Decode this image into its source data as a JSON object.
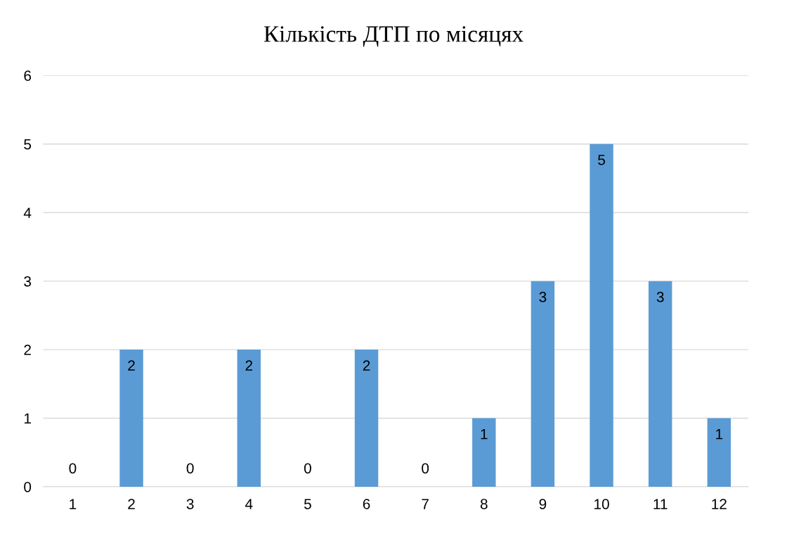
{
  "chart_data": {
    "type": "bar",
    "title": "Кількість ДТП по місяцях",
    "categories": [
      "1",
      "2",
      "3",
      "4",
      "5",
      "6",
      "7",
      "8",
      "9",
      "10",
      "11",
      "12"
    ],
    "values": [
      0,
      2,
      0,
      2,
      0,
      2,
      0,
      1,
      3,
      5,
      3,
      1
    ],
    "color": "#5b9bd5",
    "ylim": [
      0,
      6
    ],
    "yticks": [
      0,
      1,
      2,
      3,
      4,
      5,
      6
    ],
    "grid": "y",
    "data_labels": true
  }
}
